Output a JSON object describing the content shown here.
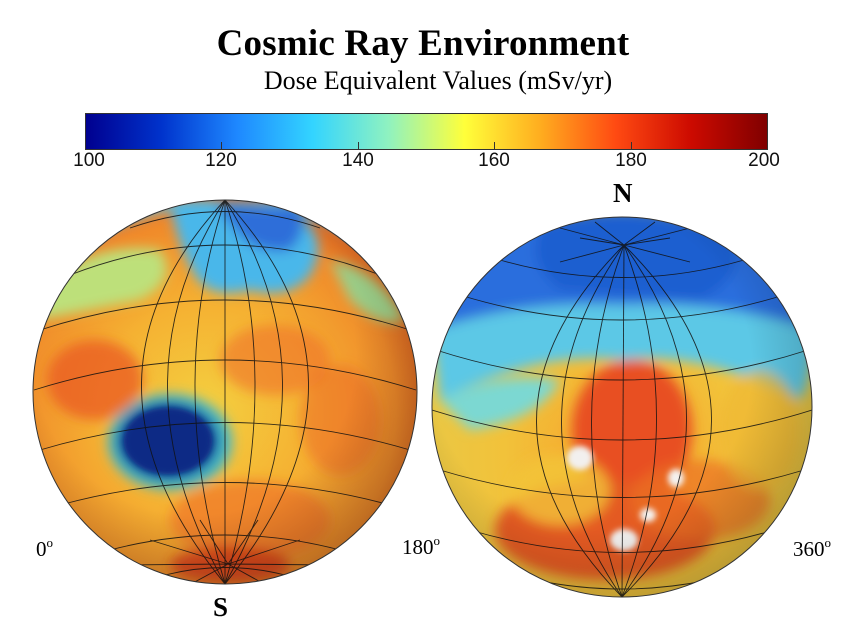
{
  "title": "Cosmic Ray Environment",
  "subtitle": "Dose Equivalent Values (mSv/yr)",
  "colorbar": {
    "min": 100,
    "max": 200,
    "ticks": [
      "100",
      "120",
      "140",
      "160",
      "180",
      "200"
    ],
    "colors": [
      "#00008f",
      "#0033cc",
      "#1e88ff",
      "#33d4ff",
      "#8ff2c0",
      "#ffff3a",
      "#ffad1f",
      "#ff4a12",
      "#cc0a00",
      "#800000"
    ]
  },
  "labels": {
    "south_pole": "S",
    "north_pole": "N",
    "lon_0": "0",
    "lon_180": "180",
    "lon_360": "360",
    "degree": "o"
  }
}
